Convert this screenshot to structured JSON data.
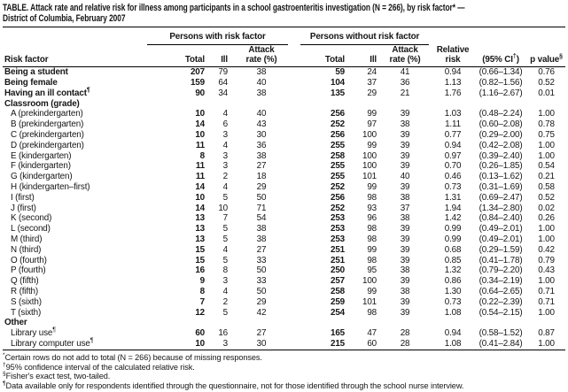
{
  "title": "TABLE. Attack rate and relative risk for illness among participants in a school gastroenteritis investigation (N = 266), by risk factor* —\nDistrict of Columbia, February 2007",
  "header": {
    "group_with": "Persons with risk factor",
    "group_without": "Persons without risk factor",
    "risk_factor": "Risk factor",
    "total": "Total",
    "ill": "Ill",
    "attack": "Attack",
    "rate": "rate (%)",
    "relative": "Relative",
    "risk": "risk",
    "ci": "(95% CI",
    "ci_sup": "†",
    "ci_close": ")",
    "p_value": "p value",
    "p_value_sup": "§"
  },
  "rows": [
    {
      "type": "data",
      "label": "Being a student",
      "sup": "",
      "bold": true,
      "indent": false,
      "values": [
        "207",
        "79",
        "38",
        "59",
        "24",
        "41",
        "0.94",
        "(0.66–1.34)",
        "0.76"
      ]
    },
    {
      "type": "data",
      "label": "Being female",
      "sup": "",
      "bold": true,
      "indent": false,
      "values": [
        "159",
        "64",
        "40",
        "104",
        "37",
        "36",
        "1.13",
        "(0.82–1.56)",
        "0.52"
      ]
    },
    {
      "type": "data",
      "label": "Having an ill contact",
      "sup": "¶",
      "bold": true,
      "indent": false,
      "values": [
        "90",
        "34",
        "38",
        "135",
        "29",
        "21",
        "1.76",
        "(1.16–2.67)",
        "0.01"
      ]
    },
    {
      "type": "section",
      "label": "Classroom (grade)"
    },
    {
      "type": "data",
      "label": "A (prekindergarten)",
      "sup": "",
      "bold": false,
      "indent": true,
      "values": [
        "10",
        "4",
        "40",
        "256",
        "99",
        "39",
        "1.03",
        "(0.48–2.24)",
        "1.00"
      ]
    },
    {
      "type": "data",
      "label": "B (prekindergarten)",
      "sup": "",
      "bold": false,
      "indent": true,
      "values": [
        "14",
        "6",
        "43",
        "252",
        "97",
        "38",
        "1.11",
        "(0.60–2.08)",
        "0.78"
      ]
    },
    {
      "type": "data",
      "label": "C (prekindergarten)",
      "sup": "",
      "bold": false,
      "indent": true,
      "values": [
        "10",
        "3",
        "30",
        "256",
        "100",
        "39",
        "0.77",
        "(0.29–2.00)",
        "0.75"
      ]
    },
    {
      "type": "data",
      "label": "D (prekindergarten)",
      "sup": "",
      "bold": false,
      "indent": true,
      "values": [
        "11",
        "4",
        "36",
        "255",
        "99",
        "39",
        "0.94",
        "(0.42–2.08)",
        "1.00"
      ]
    },
    {
      "type": "data",
      "label": "E (kindergarten)",
      "sup": "",
      "bold": false,
      "indent": true,
      "values": [
        "8",
        "3",
        "38",
        "258",
        "100",
        "39",
        "0.97",
        "(0.39–2.40)",
        "1.00"
      ]
    },
    {
      "type": "data",
      "label": "F (kindergarten)",
      "sup": "",
      "bold": false,
      "indent": true,
      "values": [
        "11",
        "3",
        "27",
        "255",
        "100",
        "39",
        "0.70",
        "(0.26–1.85)",
        "0.54"
      ]
    },
    {
      "type": "data",
      "label": "G (kindergarten)",
      "sup": "",
      "bold": false,
      "indent": true,
      "values": [
        "11",
        "2",
        "18",
        "255",
        "101",
        "40",
        "0.46",
        "(0.13–1.62)",
        "0.21"
      ]
    },
    {
      "type": "data",
      "label": "H (kindergarten–first)",
      "sup": "",
      "bold": false,
      "indent": true,
      "values": [
        "14",
        "4",
        "29",
        "252",
        "99",
        "39",
        "0.73",
        "(0.31–1.69)",
        "0.58"
      ]
    },
    {
      "type": "data",
      "label": "I (first)",
      "sup": "",
      "bold": false,
      "indent": true,
      "values": [
        "10",
        "5",
        "50",
        "256",
        "98",
        "38",
        "1.31",
        "(0.69–2.47)",
        "0.52"
      ]
    },
    {
      "type": "data",
      "label": "J (first)",
      "sup": "",
      "bold": false,
      "indent": true,
      "values": [
        "14",
        "10",
        "71",
        "252",
        "93",
        "37",
        "1.94",
        "(1.34–2.80)",
        "0.02"
      ]
    },
    {
      "type": "data",
      "label": "K (second)",
      "sup": "",
      "bold": false,
      "indent": true,
      "values": [
        "13",
        "7",
        "54",
        "253",
        "96",
        "38",
        "1.42",
        "(0.84–2.40)",
        "0.26"
      ]
    },
    {
      "type": "data",
      "label": "L (second)",
      "sup": "",
      "bold": false,
      "indent": true,
      "values": [
        "13",
        "5",
        "38",
        "253",
        "98",
        "39",
        "0.99",
        "(0.49–2.01)",
        "1.00"
      ]
    },
    {
      "type": "data",
      "label": "M (third)",
      "sup": "",
      "bold": false,
      "indent": true,
      "values": [
        "13",
        "5",
        "38",
        "253",
        "98",
        "39",
        "0.99",
        "(0.49–2.01)",
        "1.00"
      ]
    },
    {
      "type": "data",
      "label": "N (third)",
      "sup": "",
      "bold": false,
      "indent": true,
      "values": [
        "15",
        "4",
        "27",
        "251",
        "99",
        "39",
        "0.68",
        "(0.29–1.59)",
        "0.42"
      ]
    },
    {
      "type": "data",
      "label": "O (fourth)",
      "sup": "",
      "bold": false,
      "indent": true,
      "values": [
        "15",
        "5",
        "33",
        "251",
        "98",
        "39",
        "0.85",
        "(0.41–1.78)",
        "0.79"
      ]
    },
    {
      "type": "data",
      "label": "P (fourth)",
      "sup": "",
      "bold": false,
      "indent": true,
      "values": [
        "16",
        "8",
        "50",
        "250",
        "95",
        "38",
        "1.32",
        "(0.79–2.20)",
        "0.43"
      ]
    },
    {
      "type": "data",
      "label": "Q (fifth)",
      "sup": "",
      "bold": false,
      "indent": true,
      "values": [
        "9",
        "3",
        "33",
        "257",
        "100",
        "39",
        "0.86",
        "(0.34–2.19)",
        "1.00"
      ]
    },
    {
      "type": "data",
      "label": "R (fifth)",
      "sup": "",
      "bold": false,
      "indent": true,
      "values": [
        "8",
        "4",
        "50",
        "258",
        "99",
        "38",
        "1.30",
        "(0.64–2.65)",
        "0.71"
      ]
    },
    {
      "type": "data",
      "label": "S (sixth)",
      "sup": "",
      "bold": false,
      "indent": true,
      "values": [
        "7",
        "2",
        "29",
        "259",
        "101",
        "39",
        "0.73",
        "(0.22–2.39)",
        "0.71"
      ]
    },
    {
      "type": "data",
      "label": "T (sixth)",
      "sup": "",
      "bold": false,
      "indent": true,
      "values": [
        "12",
        "5",
        "42",
        "254",
        "98",
        "39",
        "1.08",
        "(0.54–2.15)",
        "1.00"
      ]
    },
    {
      "type": "section",
      "label": "Other"
    },
    {
      "type": "data",
      "label": "Library use",
      "sup": "¶",
      "bold": false,
      "indent": true,
      "values": [
        "60",
        "16",
        "27",
        "165",
        "47",
        "28",
        "0.94",
        "(0.58–1.52)",
        "0.87"
      ]
    },
    {
      "type": "data",
      "label": "Library computer use",
      "sup": "¶",
      "bold": false,
      "indent": true,
      "values": [
        "10",
        "3",
        "30",
        "215",
        "60",
        "28",
        "1.08",
        "(0.41–2.84)",
        "1.00"
      ]
    }
  ],
  "footnotes": [
    {
      "marker": "*",
      "text": "Certain rows do not add to total (N = 266) because of missing responses."
    },
    {
      "marker": "†",
      "text": "95% confidence interval of the calculated relative risk."
    },
    {
      "marker": "§",
      "text": "Fisher's exact test, two-tailed."
    },
    {
      "marker": "¶",
      "text": "Data available only for respondents identified through the questionnaire, not for those identified through the school nurse interview."
    }
  ]
}
